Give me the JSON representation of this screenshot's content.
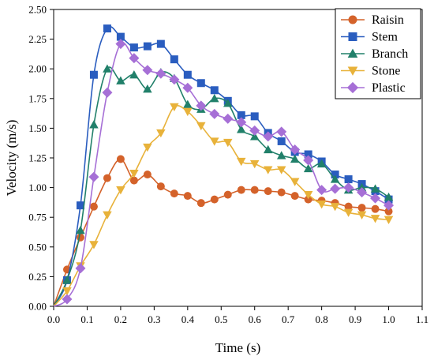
{
  "chart_data": {
    "type": "line",
    "xlabel": "Time (s)",
    "ylabel": "Velocity  (m/s)",
    "xlim": [
      0.0,
      1.1
    ],
    "ylim": [
      0.0,
      2.5
    ],
    "xticks": [
      "0.0",
      "0.1",
      "0.2",
      "0.3",
      "0.4",
      "0.5",
      "0.6",
      "0.7",
      "0.8",
      "0.9",
      "1.0",
      "1.1"
    ],
    "yticks": [
      "0.00",
      "0.25",
      "0.50",
      "0.75",
      "1.00",
      "1.25",
      "1.50",
      "1.75",
      "2.00",
      "2.25",
      "2.50"
    ],
    "legend_position": "top-right",
    "grid": false,
    "series": [
      {
        "name": "Raisin",
        "color": "#d4622a",
        "marker": "circle",
        "x": [
          0.0,
          0.04,
          0.08,
          0.12,
          0.16,
          0.2,
          0.24,
          0.28,
          0.32,
          0.36,
          0.4,
          0.44,
          0.48,
          0.52,
          0.56,
          0.6,
          0.64,
          0.68,
          0.72,
          0.76,
          0.8,
          0.84,
          0.88,
          0.92,
          0.96,
          1.0
        ],
        "y": [
          0.0,
          0.31,
          0.58,
          0.84,
          1.08,
          1.24,
          1.06,
          1.11,
          1.01,
          0.95,
          0.93,
          0.87,
          0.9,
          0.94,
          0.98,
          0.98,
          0.97,
          0.96,
          0.93,
          0.9,
          0.89,
          0.87,
          0.84,
          0.83,
          0.82,
          0.8
        ]
      },
      {
        "name": "Stem",
        "color": "#2a5dbf",
        "marker": "square",
        "x": [
          0.0,
          0.04,
          0.08,
          0.12,
          0.16,
          0.2,
          0.24,
          0.28,
          0.32,
          0.36,
          0.4,
          0.44,
          0.48,
          0.52,
          0.56,
          0.6,
          0.64,
          0.68,
          0.72,
          0.76,
          0.8,
          0.84,
          0.88,
          0.92,
          0.96,
          1.0
        ],
        "y": [
          0.0,
          0.22,
          0.85,
          1.95,
          2.34,
          2.27,
          2.18,
          2.19,
          2.21,
          2.08,
          1.95,
          1.88,
          1.82,
          1.73,
          1.61,
          1.6,
          1.46,
          1.39,
          1.3,
          1.28,
          1.22,
          1.11,
          1.07,
          1.03,
          0.97,
          0.9
        ]
      },
      {
        "name": "Branch",
        "color": "#21806a",
        "marker": "triangle-up",
        "x": [
          0.0,
          0.04,
          0.08,
          0.12,
          0.16,
          0.2,
          0.24,
          0.28,
          0.32,
          0.36,
          0.4,
          0.44,
          0.48,
          0.52,
          0.56,
          0.6,
          0.64,
          0.68,
          0.72,
          0.76,
          0.8,
          0.84,
          0.88,
          0.92,
          0.96,
          1.0
        ],
        "y": [
          0.0,
          0.22,
          0.64,
          1.53,
          2.0,
          1.9,
          1.95,
          1.83,
          1.97,
          1.92,
          1.7,
          1.66,
          1.75,
          1.71,
          1.49,
          1.43,
          1.32,
          1.27,
          1.24,
          1.16,
          1.2,
          1.07,
          0.98,
          1.0,
          0.99,
          0.92
        ]
      },
      {
        "name": "Stone",
        "color": "#e8b23a",
        "marker": "triangle-down",
        "x": [
          0.0,
          0.04,
          0.08,
          0.12,
          0.16,
          0.2,
          0.24,
          0.28,
          0.32,
          0.36,
          0.4,
          0.44,
          0.48,
          0.52,
          0.56,
          0.6,
          0.64,
          0.68,
          0.72,
          0.76,
          0.8,
          0.84,
          0.88,
          0.92,
          0.96,
          1.0
        ],
        "y": [
          0.0,
          0.13,
          0.34,
          0.52,
          0.77,
          0.98,
          1.12,
          1.34,
          1.46,
          1.68,
          1.64,
          1.52,
          1.39,
          1.38,
          1.22,
          1.2,
          1.15,
          1.15,
          1.05,
          0.94,
          0.86,
          0.84,
          0.79,
          0.77,
          0.74,
          0.73
        ]
      },
      {
        "name": "Plastic",
        "color": "#a66fd6",
        "marker": "diamond",
        "x": [
          0.0,
          0.04,
          0.08,
          0.12,
          0.16,
          0.2,
          0.24,
          0.28,
          0.32,
          0.36,
          0.4,
          0.44,
          0.48,
          0.52,
          0.56,
          0.6,
          0.64,
          0.68,
          0.72,
          0.76,
          0.8,
          0.84,
          0.88,
          0.92,
          0.96,
          1.0
        ],
        "y": [
          0.0,
          0.06,
          0.32,
          1.09,
          1.8,
          2.21,
          2.09,
          1.99,
          1.96,
          1.91,
          1.84,
          1.69,
          1.62,
          1.58,
          1.55,
          1.48,
          1.43,
          1.47,
          1.32,
          1.23,
          0.98,
          0.99,
          1.0,
          0.96,
          0.91,
          0.85
        ]
      }
    ]
  }
}
